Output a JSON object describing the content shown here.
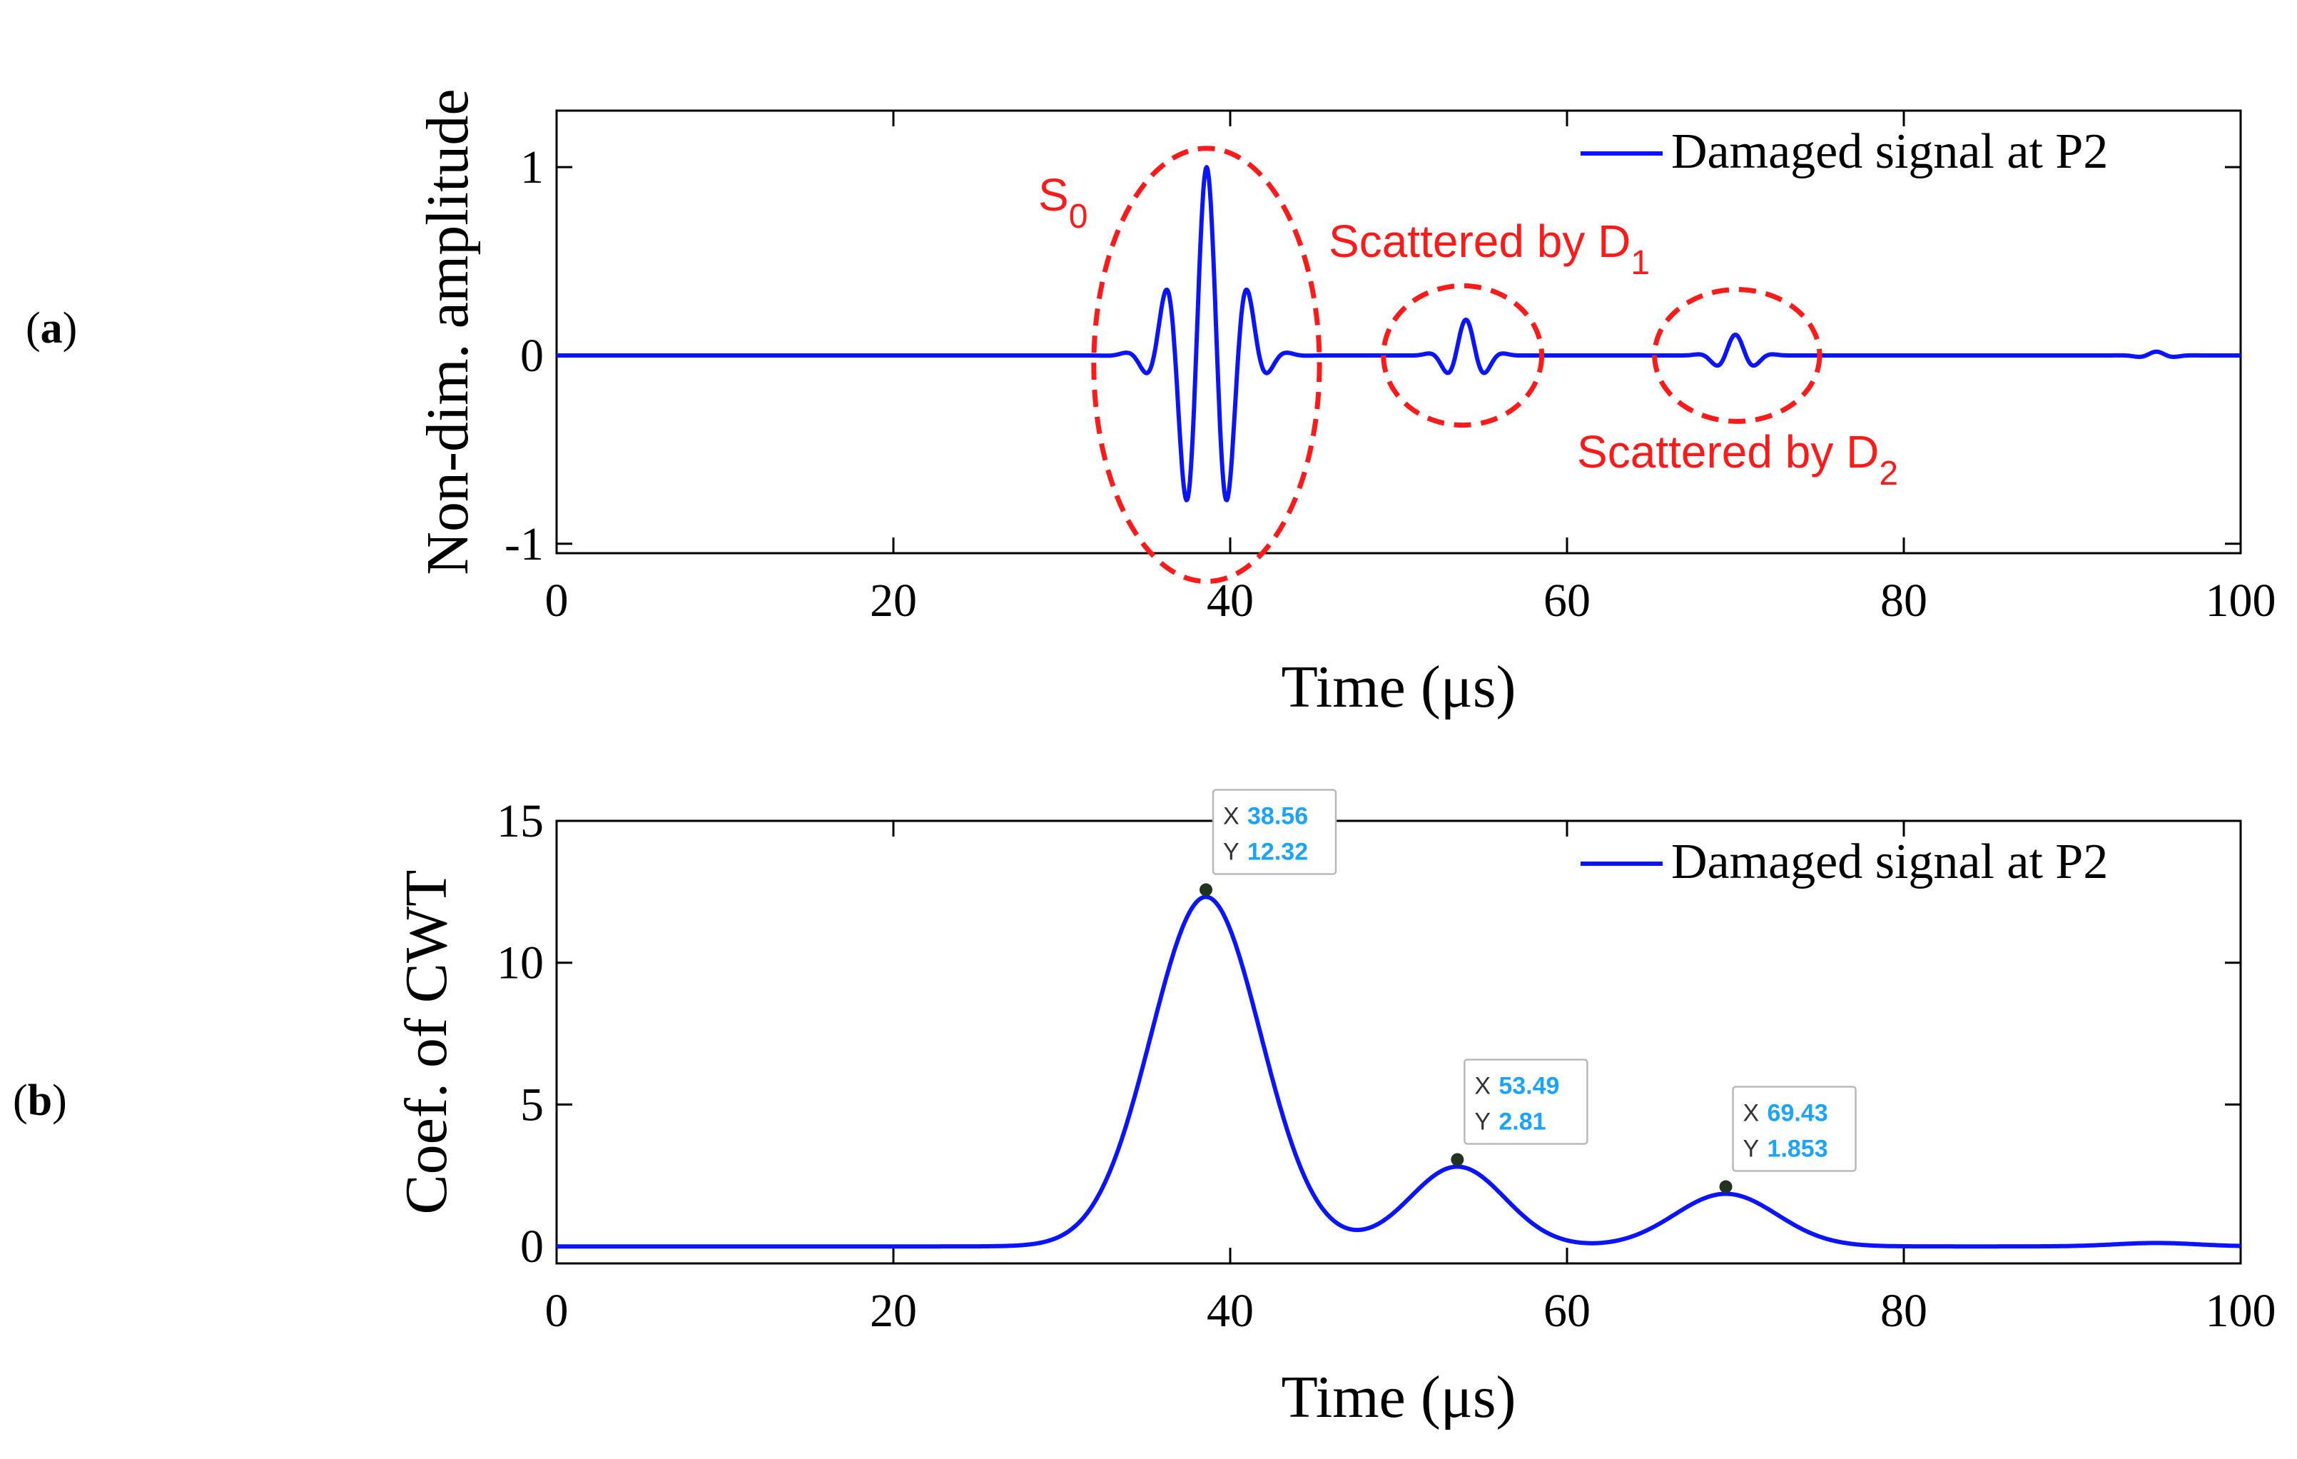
{
  "panels": {
    "a": {
      "label": "a"
    },
    "b": {
      "label": "b"
    }
  },
  "colors": {
    "signal": "#0a14ff",
    "annotation": "#ff1a1a",
    "tipValue": "#1aa3ff"
  },
  "chart_data": [
    {
      "type": "line",
      "panel": "a",
      "ylabel": "Non-dim. amplitude",
      "xlabel": "Time (μs)",
      "xlim": [
        0,
        100
      ],
      "ylim": [
        -1.05,
        1.3
      ],
      "xticks": [
        0,
        20,
        40,
        60,
        80,
        100
      ],
      "xtick_labels": [
        "0",
        "20",
        "40",
        "60",
        "80",
        "100"
      ],
      "yticks": [
        1,
        0,
        -1
      ],
      "ytick_labels": [
        "1",
        "0",
        "-1"
      ],
      "legend": "Damaged signal at P2",
      "legend_position": "top-right",
      "series": [
        {
          "name": "Damaged signal at P2",
          "components": [
            {
              "center": 38.6,
              "amplitude": 1.0,
              "frequency": 0.4,
              "width": 5.2
            },
            {
              "center": 54.0,
              "amplitude": 0.19,
              "frequency": 0.4,
              "width": 3.0
            },
            {
              "center": 70.0,
              "amplitude": 0.11,
              "frequency": 0.4,
              "width": 3.0
            },
            {
              "center": 95.0,
              "amplitude": 0.02,
              "frequency": 0.4,
              "width": 2.5
            }
          ]
        }
      ],
      "annotations": [
        {
          "label": "S",
          "subscript": "0",
          "cx": 38.6,
          "cy": -0.05,
          "rx": 6.7,
          "ry": 1.15
        },
        {
          "label": "Scattered by D",
          "subscript": "1",
          "cx": 53.8,
          "cy": 0.0,
          "rx": 4.7,
          "ry": 0.37
        },
        {
          "label": "Scattered by D",
          "subscript": "2",
          "cx": 70.1,
          "cy": 0.0,
          "rx": 4.9,
          "ry": 0.35
        }
      ]
    },
    {
      "type": "line",
      "panel": "b",
      "ylabel": "Coef. of CWT",
      "xlabel": "Time (μs)",
      "xlim": [
        0,
        100
      ],
      "ylim": [
        -0.6,
        15
      ],
      "xticks": [
        0,
        20,
        40,
        60,
        80,
        100
      ],
      "xtick_labels": [
        "0",
        "20",
        "40",
        "60",
        "80",
        "100"
      ],
      "yticks": [
        15,
        10,
        5,
        0
      ],
      "ytick_labels": [
        "15",
        "10",
        "5",
        "0"
      ],
      "legend": "Damaged signal at P2",
      "legend_position": "top-right",
      "series": [
        {
          "name": "Damaged signal at P2",
          "peaks": [
            {
              "x": 38.56,
              "y": 12.32
            },
            {
              "x": 53.49,
              "y": 2.81
            },
            {
              "x": 69.43,
              "y": 1.853
            }
          ]
        }
      ],
      "datatips": [
        {
          "x_label": "X",
          "y_label": "Y",
          "x_value": "38.56",
          "y_value": "12.32",
          "x": 38.56,
          "y": 12.32
        },
        {
          "x_label": "X",
          "y_label": "Y",
          "x_value": "53.49",
          "y_value": "2.81",
          "x": 53.49,
          "y": 2.81
        },
        {
          "x_label": "X",
          "y_label": "Y",
          "x_value": "69.43",
          "y_value": "1.853",
          "x": 69.43,
          "y": 1.853
        }
      ]
    }
  ]
}
